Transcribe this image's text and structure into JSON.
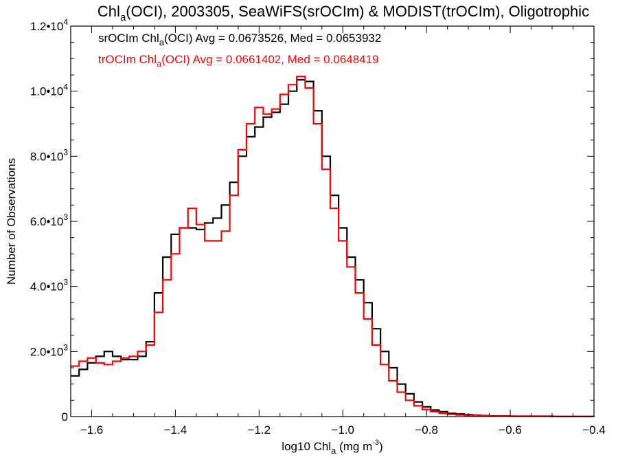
{
  "chart_data": {
    "type": "line",
    "title": {
      "pre": "Chl",
      "sub": "a",
      "post": "(OCI), 2003305, SeaWiFS(srOCIm) & MODIST(trOCIm), Oligotrophic"
    },
    "xlabel": {
      "pre": "log10 Chl",
      "sub": "a",
      "mid": " (mg m",
      "sup": "-3",
      "post": ")"
    },
    "ylabel": "Number of Observations",
    "xlim": [
      -1.65,
      -0.4
    ],
    "ylim": [
      0,
      12000
    ],
    "xticks": [
      {
        "value": -1.6,
        "label": "−1.6"
      },
      {
        "value": -1.4,
        "label": "−1.4"
      },
      {
        "value": -1.2,
        "label": "−1.2"
      },
      {
        "value": -1.0,
        "label": "−1.0"
      },
      {
        "value": -0.8,
        "label": "−0.8"
      },
      {
        "value": -0.6,
        "label": "−0.6"
      },
      {
        "value": -0.4,
        "label": "−0.4"
      }
    ],
    "yticks": [
      {
        "value": 0,
        "mant": "0",
        "exp": ""
      },
      {
        "value": 2000,
        "mant": "2.0•10",
        "exp": "3"
      },
      {
        "value": 4000,
        "mant": "4.0•10",
        "exp": "3"
      },
      {
        "value": 6000,
        "mant": "6.0•10",
        "exp": "3"
      },
      {
        "value": 8000,
        "mant": "8.0•10",
        "exp": "3"
      },
      {
        "value": 10000,
        "mant": "1.0•10",
        "exp": "4"
      },
      {
        "value": 12000,
        "mant": "1.2•10",
        "exp": "4"
      }
    ],
    "grid": false,
    "series": [
      {
        "id": "srOCIm",
        "color": "#000000",
        "annotation": {
          "pre": "srOCIm Chl",
          "sub": "a",
          "post": "(OCI) Avg = 0.0673526, Med = 0.0653932"
        },
        "x": [
          -1.65,
          -1.63,
          -1.61,
          -1.59,
          -1.57,
          -1.55,
          -1.53,
          -1.51,
          -1.49,
          -1.47,
          -1.45,
          -1.43,
          -1.41,
          -1.39,
          -1.37,
          -1.35,
          -1.33,
          -1.31,
          -1.29,
          -1.27,
          -1.25,
          -1.23,
          -1.21,
          -1.19,
          -1.17,
          -1.15,
          -1.13,
          -1.11,
          -1.09,
          -1.07,
          -1.05,
          -1.03,
          -1.01,
          -0.99,
          -0.97,
          -0.95,
          -0.93,
          -0.91,
          -0.89,
          -0.87,
          -0.85,
          -0.83,
          -0.81,
          -0.79,
          -0.77,
          -0.75,
          -0.73,
          -0.71,
          -0.69,
          -0.67,
          -0.65,
          -0.6,
          -0.5,
          -0.4
        ],
        "y": [
          1250,
          1450,
          1650,
          1850,
          2000,
          1850,
          1750,
          1750,
          1850,
          2300,
          3800,
          4900,
          5600,
          5800,
          5800,
          5750,
          5950,
          6100,
          6500,
          7200,
          8000,
          8600,
          8900,
          9200,
          9350,
          9600,
          10000,
          10350,
          10300,
          9400,
          8000,
          6800,
          5800,
          4900,
          4200,
          3500,
          2700,
          2000,
          1500,
          1000,
          700,
          450,
          300,
          200,
          150,
          100,
          80,
          60,
          40,
          30,
          20,
          10,
          5,
          0
        ]
      },
      {
        "id": "trOCIm",
        "color": "#ff0000",
        "annotation": {
          "pre": "trOCIm Chl",
          "sub": "a",
          "post": "(OCI) Avg = 0.0661402, Med = 0.0648419"
        },
        "x": [
          -1.65,
          -1.63,
          -1.61,
          -1.59,
          -1.57,
          -1.55,
          -1.53,
          -1.51,
          -1.49,
          -1.47,
          -1.45,
          -1.43,
          -1.41,
          -1.39,
          -1.37,
          -1.35,
          -1.33,
          -1.31,
          -1.29,
          -1.27,
          -1.25,
          -1.23,
          -1.21,
          -1.19,
          -1.17,
          -1.15,
          -1.13,
          -1.11,
          -1.09,
          -1.07,
          -1.05,
          -1.03,
          -1.01,
          -0.99,
          -0.97,
          -0.95,
          -0.93,
          -0.91,
          -0.89,
          -0.87,
          -0.85,
          -0.83,
          -0.81,
          -0.79,
          -0.77,
          -0.75,
          -0.73,
          -0.71,
          -0.69,
          -0.67,
          -0.65,
          -0.6,
          -0.5,
          -0.4
        ],
        "y": [
          1550,
          1700,
          1800,
          1650,
          1600,
          1700,
          1800,
          1850,
          2000,
          2200,
          3200,
          4200,
          5000,
          5800,
          6400,
          5900,
          5400,
          5400,
          5700,
          6800,
          8200,
          9000,
          9500,
          9300,
          9450,
          9900,
          10200,
          10450,
          10100,
          9000,
          7600,
          6400,
          5400,
          4600,
          3800,
          3000,
          2200,
          1600,
          1100,
          750,
          500,
          330,
          220,
          150,
          100,
          70,
          50,
          40,
          30,
          20,
          15,
          10,
          5,
          0
        ]
      }
    ]
  }
}
